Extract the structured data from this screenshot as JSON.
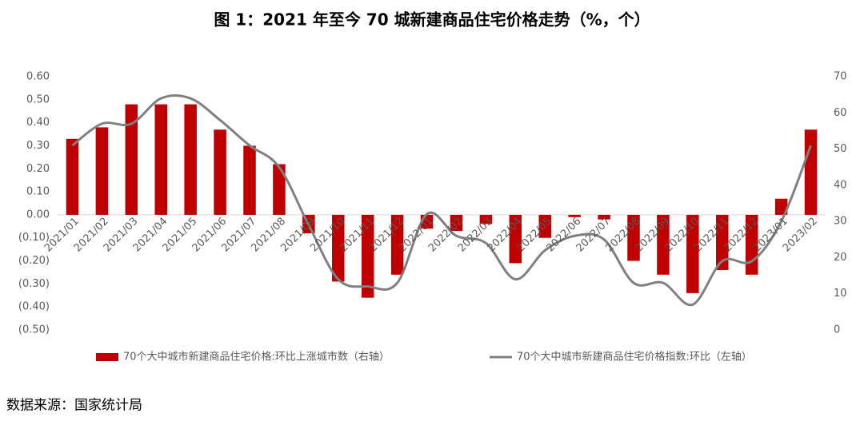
{
  "chart_data": {
    "type": "bar_line",
    "title": "图 1：2021 年至今 70 城新建商品住宅价格走势（%，个）",
    "source": "数据来源：国家统计局",
    "categories": [
      "2021/01",
      "2021/02",
      "2021/03",
      "2021/04",
      "2021/05",
      "2021/06",
      "2021/07",
      "2021/08",
      "2021/09",
      "2021/10",
      "2021/11",
      "2021/12",
      "2022/01",
      "2022/02",
      "2022/03",
      "2022/04",
      "2022/05",
      "2022/06",
      "2022/07",
      "2022/08",
      "2022/09",
      "2022/10",
      "2022/11",
      "2022/12",
      "2023/01",
      "2023/02"
    ],
    "series": [
      {
        "name": "70个大中城市新建商品住宅价格:环比上涨城市数（右轴）",
        "type": "bar",
        "color": "#c00000",
        "values": [
          0.33,
          0.38,
          0.48,
          0.48,
          0.48,
          0.37,
          0.3,
          0.22,
          -0.08,
          -0.29,
          -0.36,
          -0.26,
          -0.06,
          -0.07,
          -0.04,
          -0.21,
          -0.1,
          -0.01,
          -0.02,
          -0.2,
          -0.26,
          -0.34,
          -0.24,
          -0.26,
          0.07,
          0.37
        ]
      },
      {
        "name": "70个大中城市新建商品住宅价格指数:环比（左轴）",
        "type": "line",
        "color": "#808080",
        "axis": "y2",
        "values": [
          51,
          57,
          57,
          64,
          64,
          58,
          51,
          45,
          29,
          14,
          12,
          13,
          32,
          26,
          24,
          14,
          22,
          26,
          25,
          13,
          13,
          7,
          19,
          19,
          30,
          51
        ]
      }
    ],
    "ylim": [
      -0.5,
      0.6
    ],
    "yticks": [
      {
        "value": 0.6,
        "label": "0.60"
      },
      {
        "value": 0.5,
        "label": "0.50"
      },
      {
        "value": 0.4,
        "label": "0.40"
      },
      {
        "value": 0.3,
        "label": "0.30"
      },
      {
        "value": 0.2,
        "label": "0.20"
      },
      {
        "value": 0.1,
        "label": "0.10"
      },
      {
        "value": 0,
        "label": "0.00"
      },
      {
        "value": -0.1,
        "label": "(0.10)"
      },
      {
        "value": -0.2,
        "label": "(0.20)"
      },
      {
        "value": -0.3,
        "label": "(0.30)"
      },
      {
        "value": -0.4,
        "label": "(0.40)"
      },
      {
        "value": -0.5,
        "label": "(0.50)"
      }
    ],
    "y2lim": [
      0,
      70
    ],
    "y2ticks": [
      0,
      10,
      20,
      30,
      40,
      50,
      60,
      70
    ],
    "grid": false
  }
}
